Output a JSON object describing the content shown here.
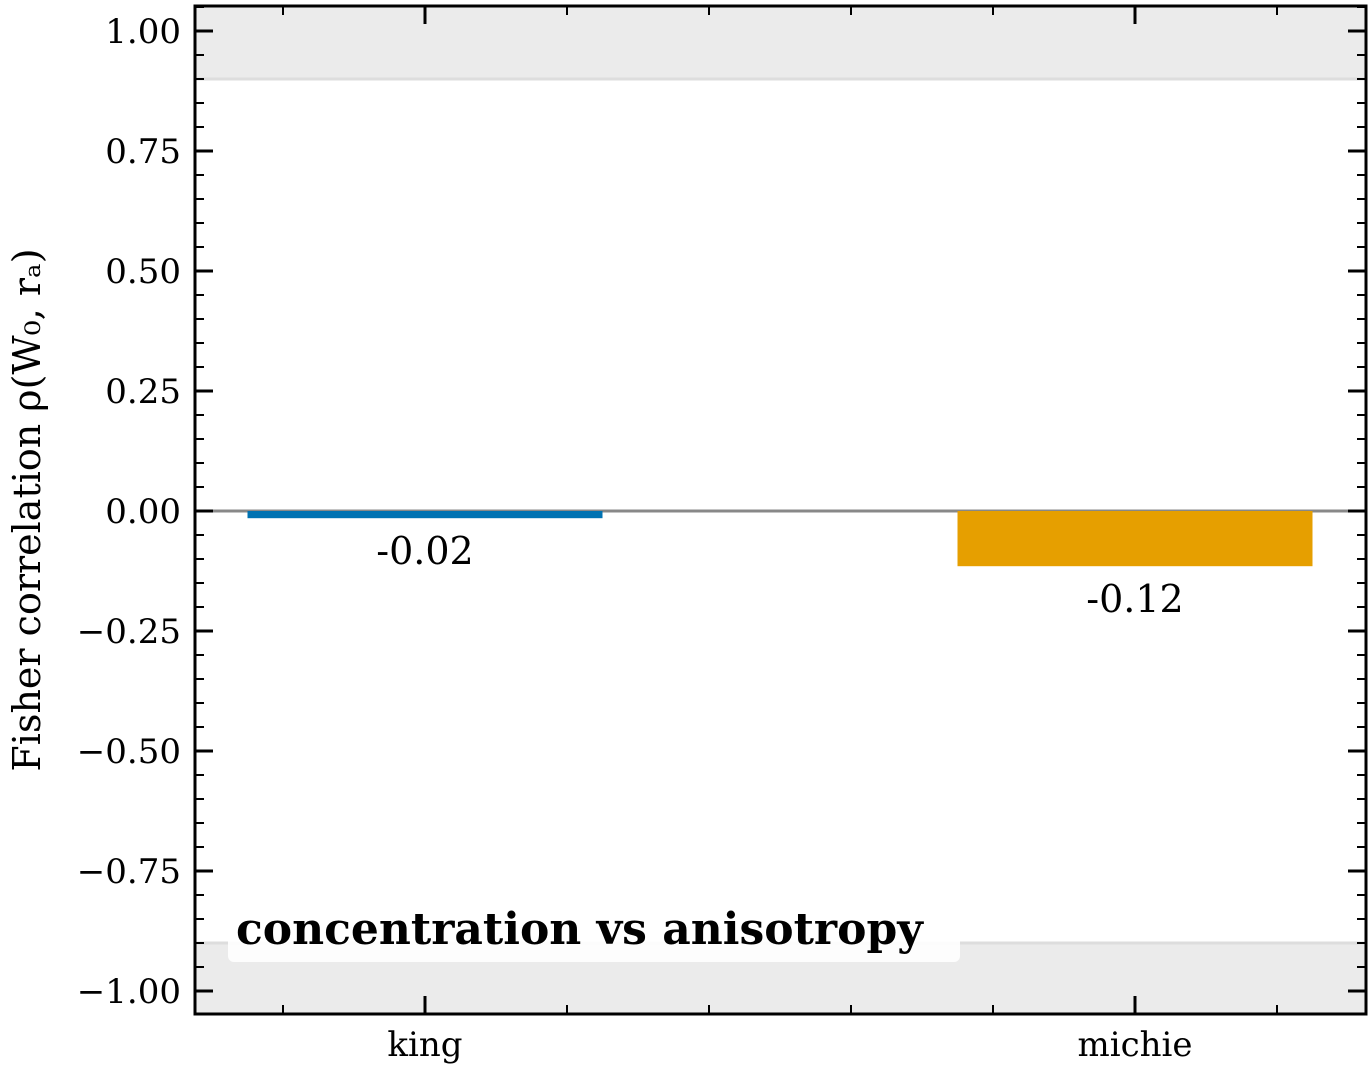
{
  "chart_data": {
    "type": "bar",
    "categories": [
      "king",
      "michie"
    ],
    "values": [
      -0.015,
      -0.115
    ],
    "data_labels": [
      "-0.02",
      "-0.12"
    ],
    "colors": [
      "#0072B2",
      "#E69F00"
    ],
    "ylabel": "Fisher correlation  ρ(W₀, rₐ)",
    "ylim": [
      -1.05,
      1.05
    ],
    "yticks": [
      1.0,
      0.75,
      0.5,
      0.25,
      0.0,
      -0.25,
      -0.5,
      -0.75,
      -1.0
    ],
    "ytick_labels": [
      "1.00",
      "0.75",
      "0.50",
      "0.25",
      "0.00",
      "−0.25",
      "−0.50",
      "−0.75",
      "−1.00"
    ],
    "zero_line": true,
    "shaded_bands": [
      {
        "from": 0.9,
        "to": 1.05
      },
      {
        "from": -1.05,
        "to": -0.9
      }
    ],
    "annotation": "concentration vs anisotropy",
    "grid": false,
    "legend": "none",
    "band_color": "#ebebeb",
    "zero_line_color": "#888888"
  }
}
